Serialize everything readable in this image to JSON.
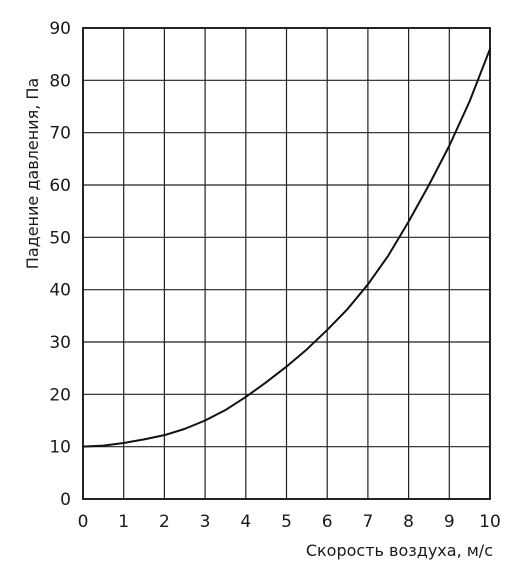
{
  "chart_data": {
    "type": "line",
    "title": "",
    "xlabel": "Скорость воздуха, м/с",
    "ylabel": "Падение давления, Па",
    "xlim": [
      0,
      10
    ],
    "ylim": [
      0,
      90
    ],
    "x_ticks": [
      0,
      1,
      2,
      3,
      4,
      5,
      6,
      7,
      8,
      9,
      10
    ],
    "y_ticks": [
      0,
      10,
      20,
      30,
      40,
      50,
      60,
      70,
      80,
      90
    ],
    "grid": true,
    "legend": "none",
    "colors": {
      "line": "#111111",
      "grid": "#222222",
      "axis": "#111111"
    },
    "series": [
      {
        "x": [
          0,
          0.5,
          1,
          1.5,
          2,
          2.5,
          3,
          3.5,
          4,
          4.5,
          5,
          5.5,
          6,
          6.5,
          7,
          7.5,
          8,
          8.5,
          9,
          9.5,
          10
        ],
        "y": [
          10,
          10.2,
          10.7,
          11.4,
          12.2,
          13.4,
          15.0,
          17.0,
          19.5,
          22.3,
          25.3,
          28.6,
          32.3,
          36.3,
          41.0,
          46.5,
          53.0,
          60.0,
          67.5,
          76.0,
          86.0
        ]
      }
    ]
  }
}
